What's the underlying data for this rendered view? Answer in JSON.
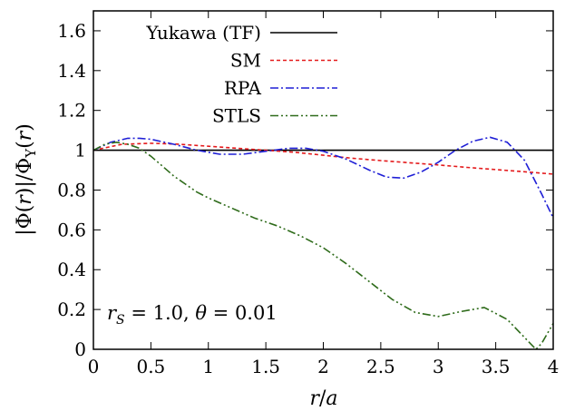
{
  "chart_data": {
    "type": "line",
    "xlabel": "r/a",
    "ylabel": "|Φ(r)|/Φ_Y(r)",
    "xlim": [
      0,
      4
    ],
    "ylim": [
      0,
      1.7
    ],
    "xticks": [
      "0",
      "0.5",
      "1",
      "1.5",
      "2",
      "2.5",
      "3",
      "3.5",
      "4"
    ],
    "yticks": [
      "0",
      "0.2",
      "0.4",
      "0.6",
      "0.8",
      "1",
      "1.2",
      "1.4",
      "1.6"
    ],
    "grid": false,
    "legend_position": "top-left",
    "annotation": "r_S = 1.0, θ = 0.01",
    "series": [
      {
        "name": "Yukawa (TF)",
        "color": "#000000",
        "dash": "solid",
        "x": [
          0,
          4
        ],
        "y": [
          1.0,
          1.0
        ]
      },
      {
        "name": "SM",
        "color": "#e41a1c",
        "dash": "dashed",
        "x": [
          0,
          0.25,
          0.5,
          0.75,
          1.0,
          1.25,
          1.5,
          1.75,
          2.0,
          2.25,
          2.5,
          2.75,
          3.0,
          3.25,
          3.5,
          3.75,
          4.0
        ],
        "y": [
          1.0,
          1.03,
          1.035,
          1.03,
          1.02,
          1.01,
          1.0,
          0.99,
          0.975,
          0.96,
          0.948,
          0.937,
          0.926,
          0.914,
          0.903,
          0.892,
          0.88
        ]
      },
      {
        "name": "RPA",
        "color": "#1f1fd6",
        "dash": "dashdot",
        "x": [
          0,
          0.15,
          0.3,
          0.4,
          0.5,
          0.7,
          0.9,
          1.1,
          1.3,
          1.5,
          1.7,
          1.85,
          2.0,
          2.2,
          2.4,
          2.55,
          2.7,
          2.85,
          3.0,
          3.15,
          3.3,
          3.45,
          3.6,
          3.75,
          3.9,
          4.0
        ],
        "y": [
          1.0,
          1.04,
          1.06,
          1.06,
          1.055,
          1.03,
          1.0,
          0.98,
          0.98,
          0.995,
          1.01,
          1.01,
          0.995,
          0.955,
          0.9,
          0.865,
          0.86,
          0.89,
          0.94,
          1.0,
          1.045,
          1.065,
          1.04,
          0.95,
          0.78,
          0.66
        ]
      },
      {
        "name": "STLS",
        "color": "#2e6b1a",
        "dash": "dashdotdot",
        "x": [
          0,
          0.1,
          0.2,
          0.3,
          0.4,
          0.5,
          0.6,
          0.7,
          0.8,
          0.9,
          1.0,
          1.2,
          1.4,
          1.6,
          1.8,
          2.0,
          2.2,
          2.4,
          2.6,
          2.8,
          3.0,
          3.2,
          3.4,
          3.6,
          3.8,
          3.85,
          3.9,
          4.0
        ],
        "y": [
          1.0,
          1.03,
          1.04,
          1.03,
          1.01,
          0.97,
          0.92,
          0.87,
          0.83,
          0.79,
          0.76,
          0.71,
          0.66,
          0.62,
          0.57,
          0.51,
          0.43,
          0.34,
          0.25,
          0.185,
          0.165,
          0.19,
          0.21,
          0.15,
          0.03,
          0.0,
          0.03,
          0.13
        ]
      }
    ]
  }
}
